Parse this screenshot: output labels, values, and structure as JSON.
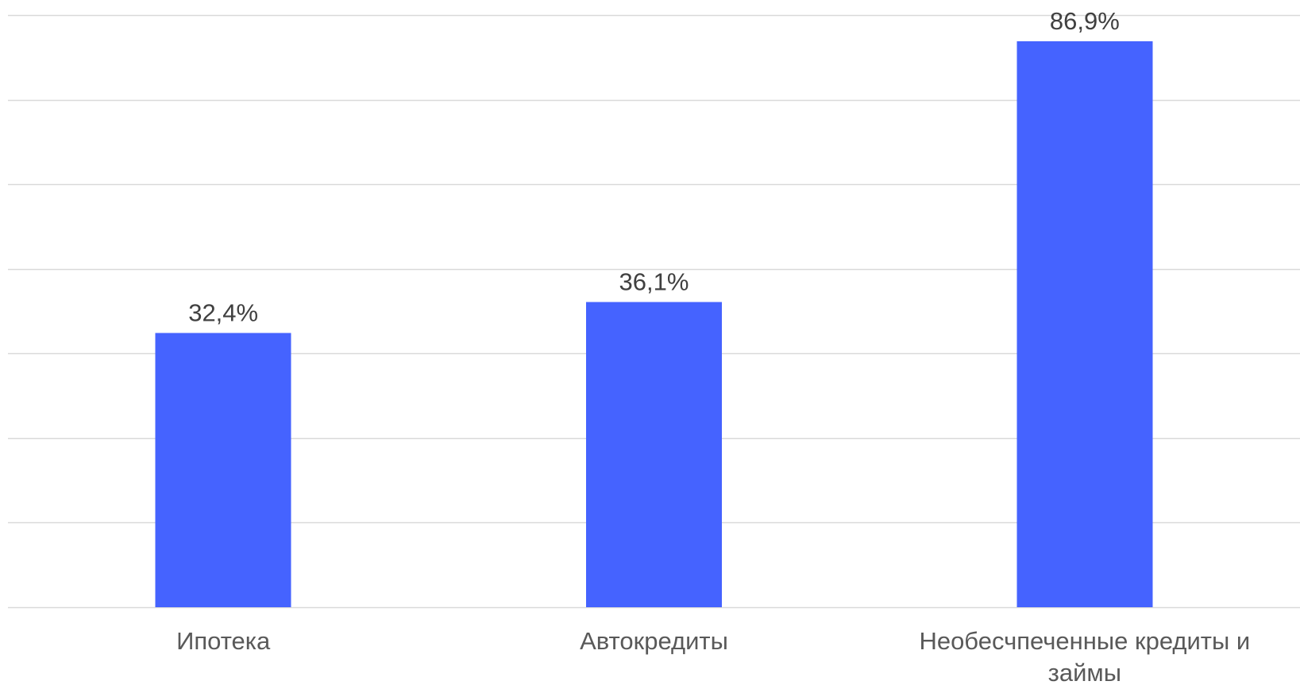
{
  "chart_data": {
    "type": "bar",
    "categories": [
      "Ипотека",
      "Автокредиты",
      "Необесчпеченные кредиты и займы"
    ],
    "category_label_lines": [
      [
        "Ипотека"
      ],
      [
        "Автокредиты"
      ],
      [
        "Необесчпеченные кредиты и",
        "займы"
      ]
    ],
    "values": [
      32.4,
      36.1,
      86.9
    ],
    "value_labels": [
      "32,4%",
      "36,1%",
      "86,9%"
    ],
    "ylim": [
      0,
      70
    ],
    "y_unit": "%",
    "grid": true,
    "gridline_values": [
      0,
      10,
      20,
      30,
      40,
      50,
      60,
      70
    ],
    "bar_color": "#4563FF",
    "gridline_color": "#D9D9D9",
    "label_color": "#404040",
    "tick_color": "#595959",
    "legend": "none"
  }
}
